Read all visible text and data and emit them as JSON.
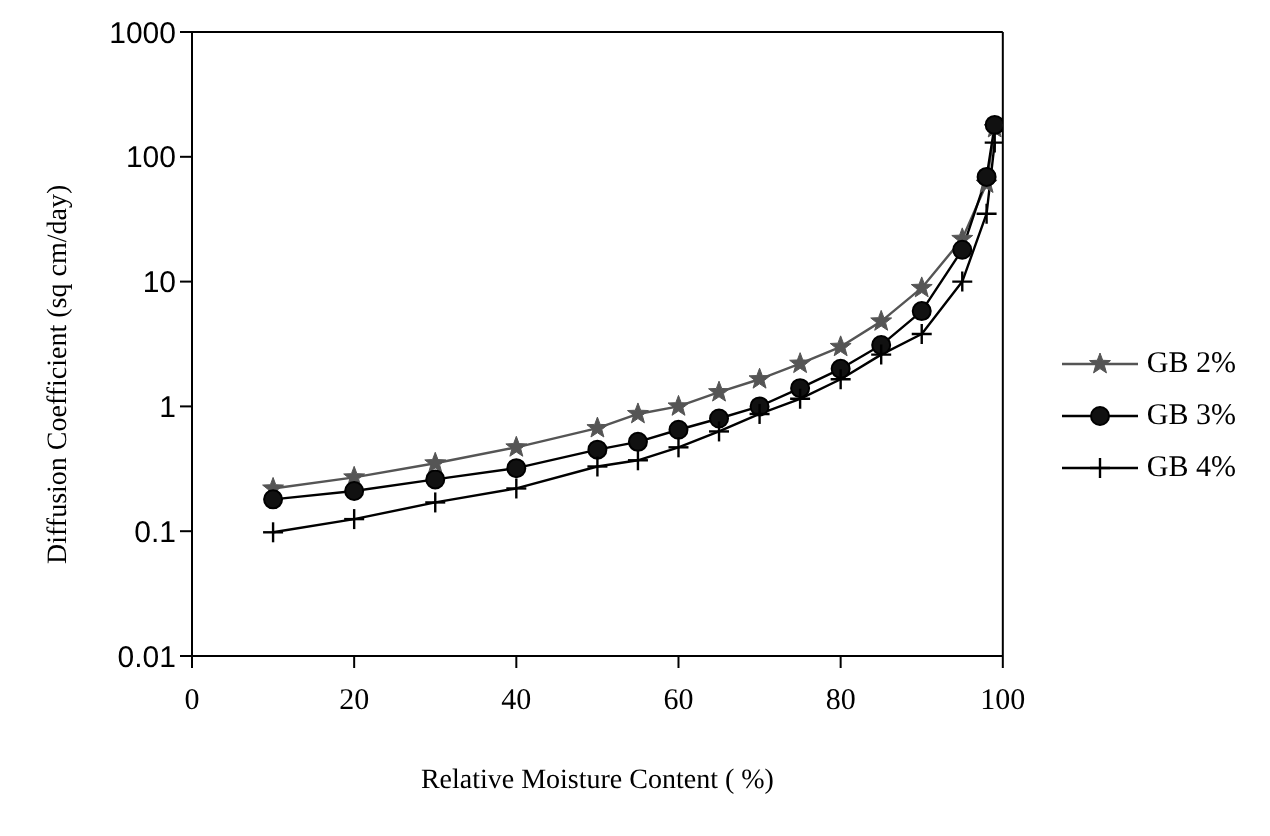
{
  "chart_data": {
    "type": "line",
    "xlabel": "Relative Moisture Content ( %)",
    "ylabel": "Diffusion Coefficient (sq cm/day)",
    "x": [
      10,
      20,
      30,
      40,
      50,
      55,
      60,
      65,
      70,
      75,
      80,
      85,
      90,
      95,
      98,
      99
    ],
    "series": [
      {
        "name": "GB 2%",
        "color": "#555555",
        "marker": "star",
        "values": [
          0.22,
          0.27,
          0.35,
          0.47,
          0.67,
          0.87,
          1.0,
          1.3,
          1.65,
          2.2,
          3.0,
          4.8,
          8.9,
          22,
          61,
          170
        ]
      },
      {
        "name": "GB 3%",
        "color": "#000000",
        "marker": "circle",
        "values": [
          0.18,
          0.21,
          0.26,
          0.32,
          0.45,
          0.52,
          0.65,
          0.8,
          1.0,
          1.4,
          2.0,
          3.1,
          5.8,
          18,
          69,
          180
        ]
      },
      {
        "name": "GB 4%",
        "color": "#000000",
        "marker": "cross",
        "values": [
          0.098,
          0.125,
          0.17,
          0.22,
          0.33,
          0.37,
          0.47,
          0.63,
          0.87,
          1.15,
          1.65,
          2.6,
          3.8,
          10,
          35,
          130
        ]
      }
    ],
    "xlim": [
      0,
      100
    ],
    "xticks": [
      0,
      20,
      40,
      60,
      80,
      100
    ],
    "ylim": [
      0.01,
      1000
    ],
    "yticks": [
      0.01,
      0.1,
      1,
      10,
      100,
      1000
    ],
    "log": "y",
    "legend": "right",
    "line_style": "solid"
  }
}
